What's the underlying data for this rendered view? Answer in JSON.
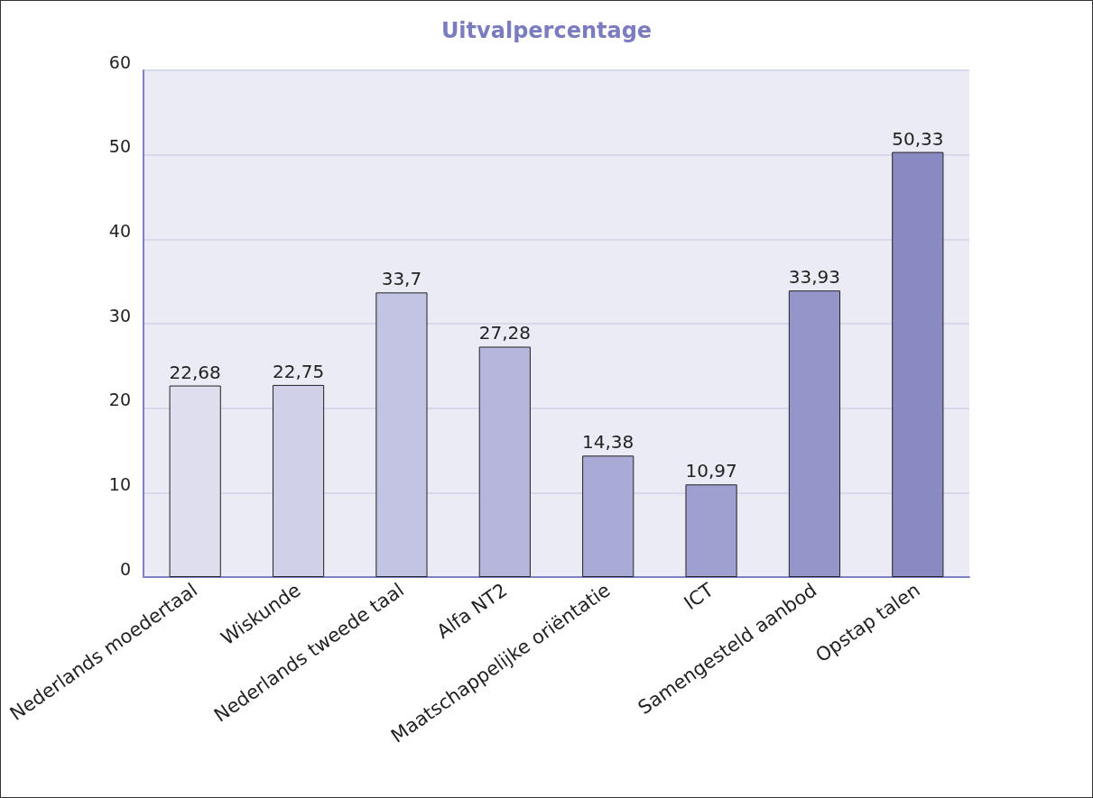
{
  "chart_data": {
    "type": "bar",
    "title": "Uitvalpercentage",
    "categories": [
      "Nederlands moedertaal",
      "Wiskunde",
      "Nederlands tweede taal",
      "Alfa NT2",
      "Maatschappelijke oriëntatie",
      "ICT",
      "Samengesteld aanbod",
      "Opstap talen"
    ],
    "values": [
      22.68,
      22.75,
      33.7,
      27.28,
      14.38,
      10.97,
      33.93,
      50.33
    ],
    "value_labels": [
      "22,68",
      "22,75",
      "33,7",
      "27,28",
      "14,38",
      "10,97",
      "33,93",
      "50,33"
    ],
    "colors": [
      "#dedeef",
      "#d0d0e8",
      "#c3c3e3",
      "#b6b6dd",
      "#aaaad6",
      "#9f9fd0",
      "#9595c9",
      "#8a8ac3"
    ],
    "ylim": [
      0,
      60
    ],
    "yticks": [
      0,
      10,
      20,
      30,
      40,
      50,
      60
    ],
    "grid": "y"
  }
}
